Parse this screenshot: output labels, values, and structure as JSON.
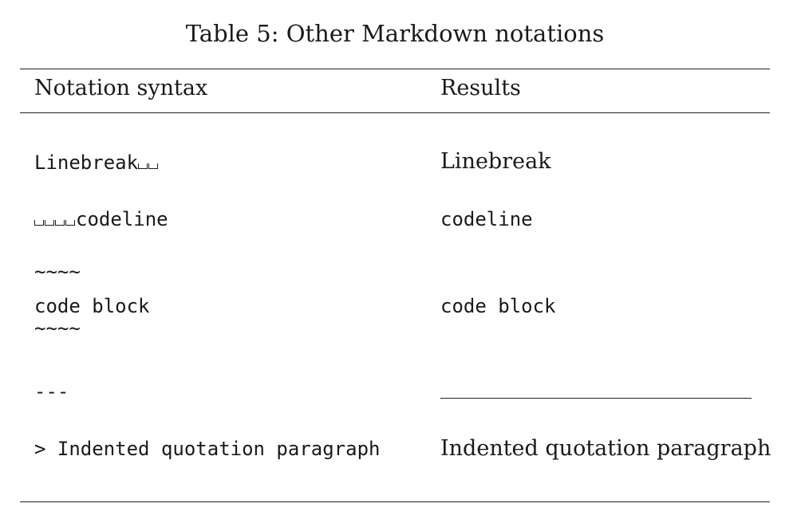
{
  "caption": "Table 5: Other Markdown notations",
  "header": {
    "col1": "Notation syntax",
    "col2": "Results"
  },
  "rows": [
    {
      "syntax_text": "Linebreak",
      "syntax_trailing_spaces": 2,
      "result": "Linebreak"
    },
    {
      "syntax_leading_spaces": 4,
      "syntax_text": "codeline",
      "result": "codeline"
    },
    {
      "syntax_fence_open": "~~~~",
      "syntax_text": "code block",
      "syntax_fence_close": "~~~~",
      "result": "code block"
    },
    {
      "syntax_text": "---",
      "result": "horizontal-rule"
    },
    {
      "syntax_text": "> Indented quotation paragraph",
      "result": "Indented quotation paragraph"
    }
  ]
}
